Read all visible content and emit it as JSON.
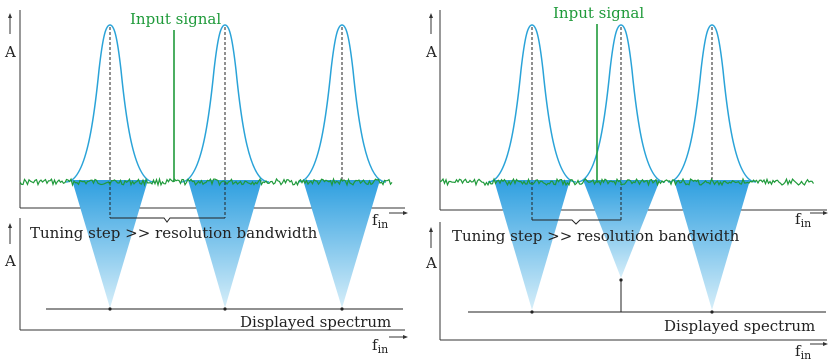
{
  "labels": {
    "input_signal": "Input signal",
    "amplitude": "A",
    "frequency": "f",
    "frequency_sub": "in",
    "tuning_step": "Tuning step >> resolution bandwidth",
    "displayed_spectrum": "Displayed spectrum"
  },
  "colors": {
    "filter_curve": "#2aa3d8",
    "input_signal": "#1f9a3a",
    "noise": "#1f9a3a",
    "cone_top": "#2e9fe0",
    "cone_bottom": "#cfeaf8",
    "axis": "#333333"
  },
  "icons": [
    "arrow-up-icon",
    "arrow-right-icon"
  ]
}
